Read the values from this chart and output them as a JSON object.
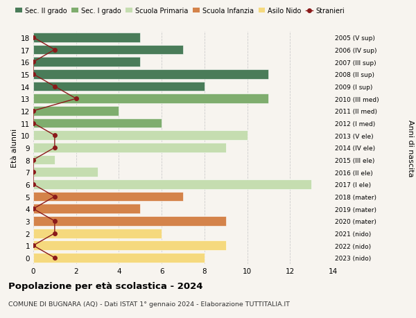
{
  "ages": [
    18,
    17,
    16,
    15,
    14,
    13,
    12,
    11,
    10,
    9,
    8,
    7,
    6,
    5,
    4,
    3,
    2,
    1,
    0
  ],
  "right_labels": [
    "2005 (V sup)",
    "2006 (IV sup)",
    "2007 (III sup)",
    "2008 (II sup)",
    "2009 (I sup)",
    "2010 (III med)",
    "2011 (II med)",
    "2012 (I med)",
    "2013 (V ele)",
    "2014 (IV ele)",
    "2015 (III ele)",
    "2016 (II ele)",
    "2017 (I ele)",
    "2018 (mater)",
    "2019 (mater)",
    "2020 (mater)",
    "2021 (nido)",
    "2022 (nido)",
    "2023 (nido)"
  ],
  "bar_values": [
    5,
    7,
    5,
    11,
    8,
    11,
    4,
    6,
    10,
    9,
    1,
    3,
    13,
    7,
    5,
    9,
    6,
    9,
    8
  ],
  "bar_colors": [
    "#4a7c59",
    "#4a7c59",
    "#4a7c59",
    "#4a7c59",
    "#4a7c59",
    "#7fad6e",
    "#7fad6e",
    "#7fad6e",
    "#c5ddb0",
    "#c5ddb0",
    "#c5ddb0",
    "#c5ddb0",
    "#c5ddb0",
    "#d4834a",
    "#d4834a",
    "#d4834a",
    "#f5d97e",
    "#f5d97e",
    "#f5d97e"
  ],
  "stranieri_values": [
    0,
    1,
    0,
    0,
    1,
    2,
    0,
    0,
    1,
    1,
    0,
    0,
    0,
    1,
    0,
    1,
    1,
    0,
    1
  ],
  "stranieri_color": "#8b1a1a",
  "ylabel": "Età alunni",
  "right_ylabel": "Anni di nascita",
  "title": "Popolazione per età scolastica - 2024",
  "subtitle": "COMUNE DI BUGNARA (AQ) - Dati ISTAT 1° gennaio 2024 - Elaborazione TUTTITALIA.IT",
  "xlim": [
    0,
    14
  ],
  "legend_labels": [
    "Sec. II grado",
    "Sec. I grado",
    "Scuola Primaria",
    "Scuola Infanzia",
    "Asilo Nido",
    "Stranieri"
  ],
  "legend_colors": [
    "#4a7c59",
    "#7fad6e",
    "#c5ddb0",
    "#d4834a",
    "#f5d97e",
    "#8b1a1a"
  ],
  "background_color": "#f7f4ef",
  "grid_color": "#cccccc",
  "xticks": [
    0,
    2,
    4,
    6,
    8,
    10,
    12,
    14
  ]
}
